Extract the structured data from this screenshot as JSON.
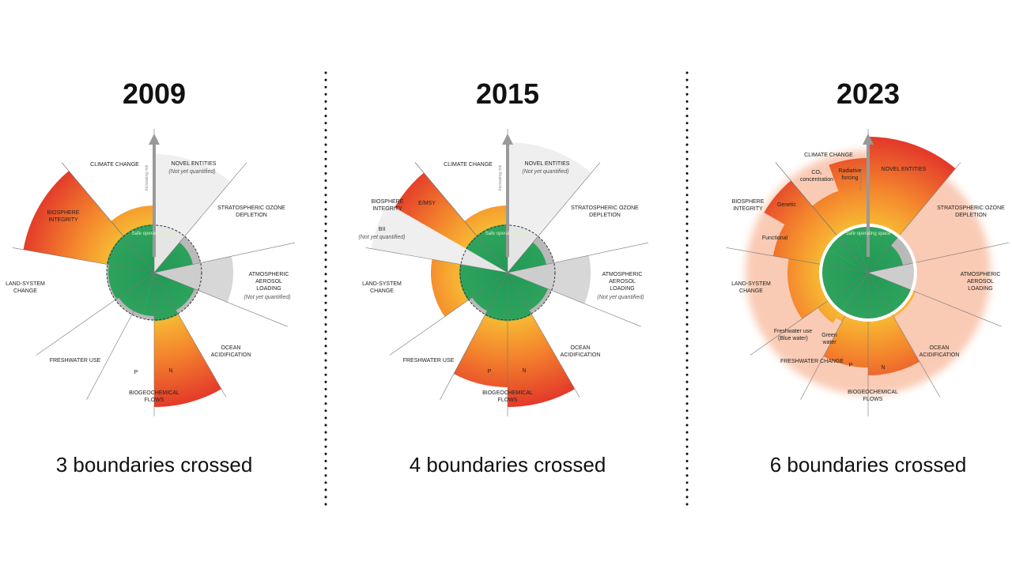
{
  "panels": [
    {
      "year": "2009",
      "caption": "3 boundaries crossed",
      "axis_label": "Increasing risk",
      "safe_label": "Safe operating space",
      "labels": [
        {
          "lines": [
            "CLIMATE CHANGE"
          ]
        },
        {
          "lines": [
            "NOVEL ENTITIES"
          ]
        },
        {
          "lines": [
            "(Not yet quantified)"
          ]
        },
        {
          "lines": [
            "STRATOSPHERIC OZONE",
            "DEPLETION"
          ]
        },
        {
          "lines": [
            "ATMOSPHERIC",
            "AEROSOL",
            "LOADING"
          ]
        },
        {
          "lines": [
            "(Not yet quantified)"
          ]
        },
        {
          "lines": [
            "OCEAN",
            "ACIDIFICATION"
          ]
        },
        {
          "lines": [
            "BIOGEOCHEMICAL",
            "FLOWS"
          ]
        },
        {
          "lines": [
            "FRESHWATER USE"
          ]
        },
        {
          "lines": [
            "LAND-SYSTEM",
            "CHANGE"
          ]
        },
        {
          "lines": [
            "BIOSPHERE",
            "INTEGRITY"
          ]
        },
        {
          "lines": [
            "P"
          ]
        },
        {
          "lines": [
            "N"
          ]
        }
      ]
    },
    {
      "year": "2015",
      "caption": "4 boundaries crossed",
      "axis_label": "Increasing risk",
      "safe_label": "Safe operating space",
      "labels": [
        {
          "lines": [
            "CLIMATE CHANGE"
          ]
        },
        {
          "lines": [
            "NOVEL ENTITIES"
          ]
        },
        {
          "lines": [
            "(Not yet quantified)"
          ]
        },
        {
          "lines": [
            "STRATOSPHERIC OZONE",
            "DEPLETION"
          ]
        },
        {
          "lines": [
            "ATMOSPHERIC",
            "AEROSOL",
            "LOADING"
          ]
        },
        {
          "lines": [
            "(Not yet quantified)"
          ]
        },
        {
          "lines": [
            "OCEAN",
            "ACIDIFICATION"
          ]
        },
        {
          "lines": [
            "BIOGEOCHEMICAL",
            "FLOWS"
          ]
        },
        {
          "lines": [
            "FRESHWATER USE"
          ]
        },
        {
          "lines": [
            "LAND-SYSTEM",
            "CHANGE"
          ]
        },
        {
          "lines": [
            "BIOSPHERE",
            "INTEGRITY"
          ]
        },
        {
          "lines": [
            "E/MSY"
          ]
        },
        {
          "lines": [
            "BII"
          ]
        },
        {
          "lines": [
            "(Not yet quantified)"
          ]
        },
        {
          "lines": [
            "P"
          ]
        },
        {
          "lines": [
            "N"
          ]
        }
      ]
    },
    {
      "year": "2023",
      "caption": "6 boundaries crossed",
      "axis_label": "Increasing risk",
      "safe_label": "Safe operating space",
      "labels": [
        {
          "lines": [
            "CLIMATE CHANGE"
          ]
        },
        {
          "lines": [
            "CO₂",
            "concentration"
          ]
        },
        {
          "lines": [
            "Radiative",
            "forcing"
          ]
        },
        {
          "lines": [
            "NOVEL ENTITIES"
          ]
        },
        {
          "lines": [
            "STRATOSPHERIC OZONE",
            "DEPLETION"
          ]
        },
        {
          "lines": [
            "ATMOSPHERIC",
            "AEROSOL",
            "LOADING"
          ]
        },
        {
          "lines": [
            "OCEAN",
            "ACIDIFICATION"
          ]
        },
        {
          "lines": [
            "BIOGEOCHEMICAL",
            "FLOWS"
          ]
        },
        {
          "lines": [
            "FRESHWATER CHANGE"
          ]
        },
        {
          "lines": [
            "Freshwater use",
            "(Blue water)"
          ]
        },
        {
          "lines": [
            "Green",
            "water"
          ]
        },
        {
          "lines": [
            "LAND-SYSTEM",
            "CHANGE"
          ]
        },
        {
          "lines": [
            "BIOSPHERE",
            "INTEGRITY"
          ]
        },
        {
          "lines": [
            "Genetic"
          ]
        },
        {
          "lines": [
            "Functional"
          ]
        },
        {
          "lines": [
            "P"
          ]
        },
        {
          "lines": [
            "N"
          ]
        }
      ]
    }
  ]
}
